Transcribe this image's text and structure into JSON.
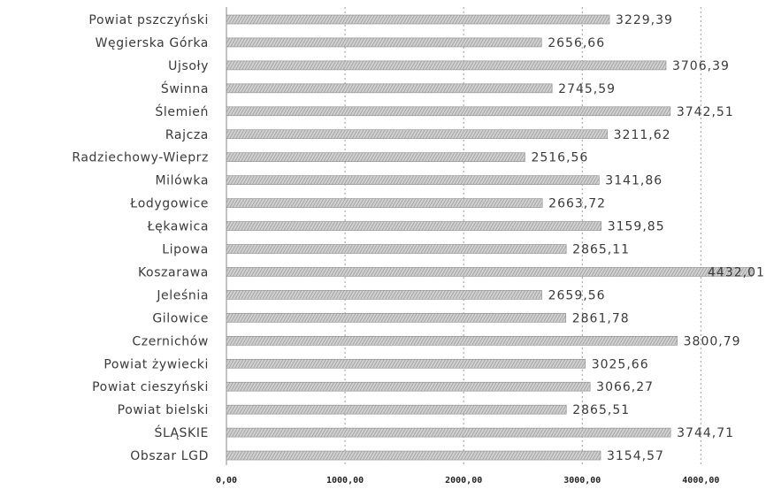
{
  "chart_data": {
    "type": "bar",
    "orientation": "horizontal",
    "categories": [
      "Powiat pszczyński",
      "Węgierska Górka",
      "Ujsoły",
      "Świnna",
      "Ślemień",
      "Rajcza",
      "Radziechowy-Wieprz",
      "Milówka",
      "Łodygowice",
      "Łękawica",
      "Lipowa",
      "Koszarawa",
      "Jeleśnia",
      "Gilowice",
      "Czernichów",
      "Powiat żywiecki",
      "Powiat cieszyński",
      "Powiat bielski",
      "ŚLĄSKIE",
      "Obszar LGD"
    ],
    "values": [
      3229.39,
      2656.66,
      3706.39,
      2745.59,
      3742.51,
      3211.62,
      2516.56,
      3141.86,
      2663.72,
      3159.85,
      2865.11,
      4432.01,
      2659.56,
      2861.78,
      3800.79,
      3025.66,
      3066.27,
      2865.51,
      3744.71,
      3154.57
    ],
    "value_labels": [
      "3229,39",
      "2656,66",
      "3706,39",
      "2745,59",
      "3742,51",
      "3211,62",
      "2516,56",
      "3141,86",
      "2663,72",
      "3159,85",
      "2865,11",
      "4432,01",
      "2659,56",
      "2861,78",
      "3800,79",
      "3025,66",
      "3066,27",
      "2865,51",
      "3744,71",
      "3154,57"
    ],
    "xticks": [
      0,
      1000,
      2000,
      3000,
      4000
    ],
    "xtick_labels": [
      "0,00",
      "1000,00",
      "2000,00",
      "3000,00",
      "4000,00"
    ],
    "xlim": [
      0,
      4400
    ],
    "grid": true,
    "colors": {
      "bar": "#c4c4c4",
      "bar_hatch": "#8c8c8c",
      "grid": "#9a9a9a",
      "text": "#3a3a3a"
    }
  }
}
